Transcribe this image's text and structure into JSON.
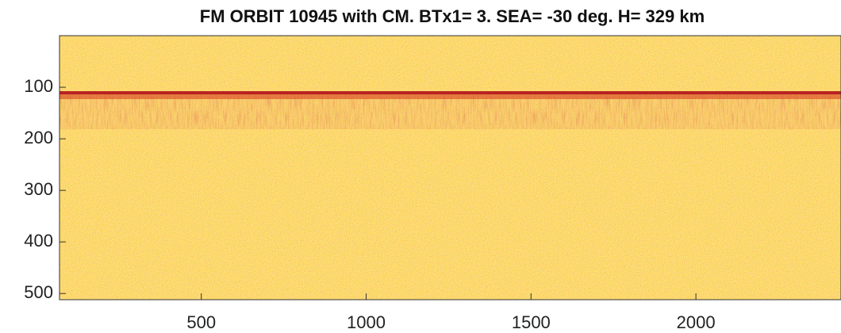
{
  "chart_data": {
    "type": "heatmap",
    "title": "FM ORBIT 10945 with CM. BTx1= 3. SEA= -30 deg. H= 329 km",
    "xlim": [
      70,
      2440
    ],
    "xticks": [
      500,
      1000,
      1500,
      2000
    ],
    "ylim": [
      0,
      512
    ],
    "yticks": [
      100,
      200,
      300,
      400,
      500
    ],
    "y_reversed": true
  }
}
